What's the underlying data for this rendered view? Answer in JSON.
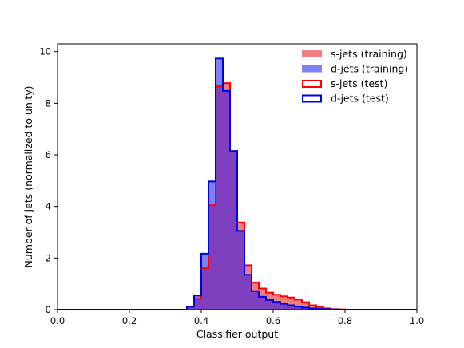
{
  "chart_data": {
    "type": "bar",
    "title": "",
    "xlabel": "Classifier output",
    "ylabel": "Number of jets (normalized to unity)",
    "xlim": [
      0.0,
      1.0
    ],
    "ylim": [
      0,
      10.3
    ],
    "xticks": [
      "0.0",
      "0.2",
      "0.4",
      "0.6",
      "0.8",
      "1.0"
    ],
    "yticks": [
      "0",
      "2",
      "4",
      "6",
      "8",
      "10"
    ],
    "grid": false,
    "legend_position": "top-right",
    "bin_width": 0.02,
    "bin_edges": [
      0.0,
      0.02,
      0.04,
      0.06,
      0.08,
      0.1,
      0.12,
      0.14,
      0.16,
      0.18,
      0.2,
      0.22,
      0.24,
      0.26,
      0.28,
      0.3,
      0.32,
      0.34,
      0.36,
      0.38,
      0.4,
      0.42,
      0.44,
      0.46,
      0.48,
      0.5,
      0.52,
      0.54,
      0.56,
      0.58,
      0.6,
      0.62,
      0.64,
      0.66,
      0.68,
      0.7,
      0.72,
      0.74,
      0.76,
      0.78,
      0.8,
      0.82,
      0.84,
      0.86,
      0.88,
      0.9,
      0.92,
      0.94,
      0.96,
      0.98,
      1.0
    ],
    "series": [
      {
        "name": "s-jets (training)",
        "kind": "filled",
        "color": "#f08080",
        "values": [
          0,
          0,
          0,
          0,
          0,
          0,
          0,
          0,
          0,
          0,
          0,
          0,
          0,
          0,
          0,
          0,
          0,
          0,
          0.1,
          0.42,
          1.6,
          4.05,
          8.7,
          8.8,
          6.1,
          3.35,
          1.7,
          1.05,
          0.8,
          0.65,
          0.58,
          0.52,
          0.46,
          0.38,
          0.28,
          0.17,
          0.1,
          0.05,
          0.02,
          0.01,
          0,
          0,
          0,
          0,
          0,
          0,
          0,
          0,
          0,
          0
        ]
      },
      {
        "name": "d-jets (training)",
        "kind": "filled",
        "color": "#8080ff",
        "values": [
          0,
          0,
          0,
          0,
          0,
          0,
          0,
          0,
          0,
          0,
          0,
          0,
          0,
          0,
          0,
          0,
          0,
          0,
          0.12,
          0.55,
          2.15,
          5.0,
          9.7,
          8.5,
          6.15,
          3.05,
          1.35,
          0.72,
          0.5,
          0.38,
          0.3,
          0.23,
          0.17,
          0.12,
          0.08,
          0.05,
          0.03,
          0.02,
          0.01,
          0,
          0,
          0,
          0,
          0,
          0,
          0,
          0,
          0,
          0,
          0
        ]
      },
      {
        "name": "s-jets (test)",
        "kind": "step",
        "color": "#ff0000",
        "values": [
          0,
          0,
          0,
          0,
          0,
          0,
          0,
          0,
          0,
          0,
          0,
          0,
          0,
          0,
          0,
          0,
          0,
          0,
          0.1,
          0.42,
          1.6,
          4.05,
          8.65,
          8.78,
          6.12,
          3.38,
          1.72,
          1.05,
          0.82,
          0.66,
          0.58,
          0.52,
          0.47,
          0.39,
          0.29,
          0.17,
          0.1,
          0.05,
          0.02,
          0.01,
          0,
          0,
          0,
          0,
          0,
          0,
          0,
          0,
          0,
          0
        ]
      },
      {
        "name": "d-jets (test)",
        "kind": "step",
        "color": "#0000dd",
        "values": [
          0,
          0,
          0,
          0,
          0,
          0,
          0,
          0,
          0,
          0,
          0,
          0,
          0,
          0,
          0,
          0,
          0,
          0,
          0.12,
          0.55,
          2.17,
          4.97,
          9.73,
          8.48,
          6.15,
          3.05,
          1.35,
          0.72,
          0.5,
          0.38,
          0.3,
          0.23,
          0.17,
          0.12,
          0.08,
          0.05,
          0.03,
          0.02,
          0.01,
          0,
          0,
          0,
          0,
          0,
          0,
          0,
          0,
          0,
          0,
          0
        ]
      }
    ],
    "overlap_color": "#7f40bf"
  }
}
